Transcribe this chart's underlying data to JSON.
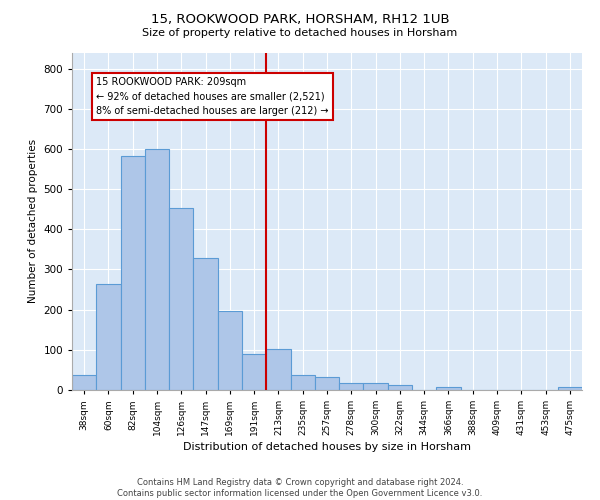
{
  "title1": "15, ROOKWOOD PARK, HORSHAM, RH12 1UB",
  "title2": "Size of property relative to detached houses in Horsham",
  "xlabel": "Distribution of detached houses by size in Horsham",
  "ylabel": "Number of detached properties",
  "categories": [
    "38sqm",
    "60sqm",
    "82sqm",
    "104sqm",
    "126sqm",
    "147sqm",
    "169sqm",
    "191sqm",
    "213sqm",
    "235sqm",
    "257sqm",
    "278sqm",
    "300sqm",
    "322sqm",
    "344sqm",
    "366sqm",
    "388sqm",
    "409sqm",
    "431sqm",
    "453sqm",
    "475sqm"
  ],
  "values": [
    37,
    265,
    583,
    600,
    453,
    328,
    196,
    90,
    102,
    37,
    33,
    18,
    18,
    12,
    0,
    7,
    0,
    0,
    0,
    0,
    8
  ],
  "bar_color": "#aec6e8",
  "bar_edge_color": "#5b9bd5",
  "bar_linewidth": 0.8,
  "vline_x": 8,
  "vline_color": "#cc0000",
  "annotation_line1": "15 ROOKWOOD PARK: 209sqm",
  "annotation_line2": "← 92% of detached houses are smaller (2,521)",
  "annotation_line3": "8% of semi-detached houses are larger (212) →",
  "annotation_box_color": "#cc0000",
  "ylim": [
    0,
    840
  ],
  "yticks": [
    0,
    100,
    200,
    300,
    400,
    500,
    600,
    700,
    800
  ],
  "background_color": "#dce9f7",
  "grid_color": "#ffffff",
  "footer1": "Contains HM Land Registry data © Crown copyright and database right 2024.",
  "footer2": "Contains public sector information licensed under the Open Government Licence v3.0."
}
